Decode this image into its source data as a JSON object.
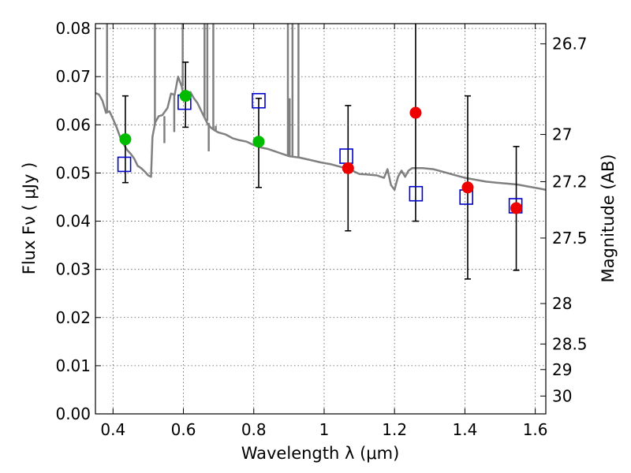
{
  "chart_data": {
    "type": "scatter",
    "xlabel": "Wavelength  λ (μm)",
    "ylabel": "Flux  Fν  ( μJy )",
    "y2label": "Magnitude (AB)",
    "xlim": [
      0.35,
      1.63
    ],
    "ylim": [
      0.0,
      0.081
    ],
    "x_ticks": [
      0.4,
      0.6,
      0.8,
      1.0,
      1.2,
      1.4,
      1.6
    ],
    "x_tick_labels": [
      "0.4",
      "0.6",
      "0.8",
      "1",
      "1.2",
      "1.4",
      "1.6"
    ],
    "y_ticks": [
      0.0,
      0.01,
      0.02,
      0.03,
      0.04,
      0.05,
      0.06,
      0.07,
      0.08
    ],
    "y_tick_labels": [
      "0.00",
      "0.01",
      "0.02",
      "0.03",
      "0.04",
      "0.05",
      "0.06",
      "0.07",
      "0.08"
    ],
    "mag_ticks": [
      {
        "flux": 0.0768,
        "label": "26.7"
      },
      {
        "flux": 0.058,
        "label": "27"
      },
      {
        "flux": 0.0482,
        "label": "27.2"
      },
      {
        "flux": 0.0365,
        "label": "27.5"
      },
      {
        "flux": 0.0229,
        "label": "28"
      },
      {
        "flux": 0.0145,
        "label": "28.5"
      },
      {
        "flux": 0.0092,
        "label": "29"
      },
      {
        "flux": 0.0037,
        "label": "30"
      }
    ],
    "grid": true,
    "colors": {
      "sed": "#808080",
      "green": "#00bb00",
      "red": "#ee0000",
      "model": "#0000cc",
      "error": "#000000"
    },
    "errorbars": [
      {
        "x": 0.435,
        "y": 0.057,
        "lo": 0.048,
        "hi": 0.066
      },
      {
        "x": 0.606,
        "y": 0.066,
        "lo": 0.0595,
        "hi": 0.073
      },
      {
        "x": 0.814,
        "y": 0.0565,
        "lo": 0.047,
        "hi": 0.0655
      },
      {
        "x": 1.068,
        "y": 0.051,
        "lo": 0.038,
        "hi": 0.064
      },
      {
        "x": 1.26,
        "y": 0.0625,
        "lo": 0.04,
        "hi": 0.0815
      },
      {
        "x": 1.408,
        "y": 0.047,
        "lo": 0.028,
        "hi": 0.066
      },
      {
        "x": 1.546,
        "y": 0.0427,
        "lo": 0.0298,
        "hi": 0.0555
      }
    ],
    "series": [
      {
        "name": "observed-green",
        "marker": "circle",
        "color": "#00bb00",
        "points": [
          [
            0.435,
            0.057
          ],
          [
            0.606,
            0.066
          ],
          [
            0.814,
            0.0565
          ]
        ]
      },
      {
        "name": "observed-red",
        "marker": "circle",
        "color": "#ee0000",
        "points": [
          [
            1.068,
            0.051
          ],
          [
            1.26,
            0.0625
          ],
          [
            1.408,
            0.047
          ],
          [
            1.546,
            0.0427
          ]
        ]
      },
      {
        "name": "model-photometry",
        "marker": "open-square",
        "color": "#0000cc",
        "points": [
          [
            0.432,
            0.0518
          ],
          [
            0.603,
            0.0647
          ],
          [
            0.814,
            0.065
          ],
          [
            1.063,
            0.0535
          ],
          [
            1.261,
            0.0457
          ],
          [
            1.404,
            0.045
          ],
          [
            1.544,
            0.0432
          ]
        ]
      },
      {
        "name": "sed-model",
        "marker": "line",
        "color": "#808080",
        "points": [
          [
            0.35,
            0.0666
          ],
          [
            0.36,
            0.0663
          ],
          [
            0.37,
            0.065
          ],
          [
            0.38,
            0.0625
          ],
          [
            0.39,
            0.0628
          ],
          [
            0.4,
            0.0612
          ],
          [
            0.41,
            0.0595
          ],
          [
            0.42,
            0.0575
          ],
          [
            0.43,
            0.056
          ],
          [
            0.44,
            0.0548
          ],
          [
            0.45,
            0.054
          ],
          [
            0.46,
            0.053
          ],
          [
            0.47,
            0.0515
          ],
          [
            0.48,
            0.051
          ],
          [
            0.49,
            0.0503
          ],
          [
            0.5,
            0.0495
          ],
          [
            0.508,
            0.0492
          ],
          [
            0.512,
            0.0575
          ],
          [
            0.52,
            0.0605
          ],
          [
            0.53,
            0.0618
          ],
          [
            0.54,
            0.062
          ],
          [
            0.555,
            0.0635
          ],
          [
            0.565,
            0.0665
          ],
          [
            0.575,
            0.0662
          ],
          [
            0.585,
            0.07
          ],
          [
            0.595,
            0.068
          ],
          [
            0.6,
            0.0662
          ],
          [
            0.61,
            0.0665
          ],
          [
            0.62,
            0.0668
          ],
          [
            0.63,
            0.0655
          ],
          [
            0.64,
            0.0645
          ],
          [
            0.65,
            0.063
          ],
          [
            0.66,
            0.0615
          ],
          [
            0.67,
            0.06
          ],
          [
            0.68,
            0.0593
          ],
          [
            0.69,
            0.0588
          ],
          [
            0.7,
            0.0584
          ],
          [
            0.72,
            0.058
          ],
          [
            0.74,
            0.0572
          ],
          [
            0.76,
            0.0568
          ],
          [
            0.78,
            0.0565
          ],
          [
            0.8,
            0.0558
          ],
          [
            0.82,
            0.0553
          ],
          [
            0.84,
            0.055
          ],
          [
            0.86,
            0.0545
          ],
          [
            0.88,
            0.054
          ],
          [
            0.9,
            0.0535
          ],
          [
            0.93,
            0.0532
          ],
          [
            0.96,
            0.0527
          ],
          [
            0.99,
            0.0522
          ],
          [
            1.02,
            0.0518
          ],
          [
            1.05,
            0.0512
          ],
          [
            1.08,
            0.0505
          ],
          [
            1.1,
            0.0498
          ],
          [
            1.12,
            0.0497
          ],
          [
            1.15,
            0.0495
          ],
          [
            1.17,
            0.049
          ],
          [
            1.18,
            0.0508
          ],
          [
            1.19,
            0.0475
          ],
          [
            1.2,
            0.0465
          ],
          [
            1.21,
            0.0492
          ],
          [
            1.22,
            0.0505
          ],
          [
            1.23,
            0.0492
          ],
          [
            1.24,
            0.0505
          ],
          [
            1.25,
            0.051
          ],
          [
            1.28,
            0.051
          ],
          [
            1.31,
            0.0508
          ],
          [
            1.34,
            0.0502
          ],
          [
            1.37,
            0.0496
          ],
          [
            1.4,
            0.049
          ],
          [
            1.43,
            0.0486
          ],
          [
            1.46,
            0.0482
          ],
          [
            1.49,
            0.048
          ],
          [
            1.52,
            0.0478
          ],
          [
            1.55,
            0.0476
          ],
          [
            1.58,
            0.0472
          ],
          [
            1.61,
            0.0468
          ],
          [
            1.63,
            0.0465
          ]
        ]
      }
    ],
    "spikes": [
      {
        "x": 0.383,
        "from": 0.0628,
        "to": 0.081
      },
      {
        "x": 0.519,
        "from": 0.06,
        "to": 0.081
      },
      {
        "x": 0.546,
        "from": 0.0618,
        "to": 0.0562
      },
      {
        "x": 0.574,
        "from": 0.0662,
        "to": 0.0585
      },
      {
        "x": 0.598,
        "from": 0.068,
        "to": 0.081
      },
      {
        "x": 0.66,
        "from": 0.0615,
        "to": 0.081
      },
      {
        "x": 0.668,
        "from": 0.0608,
        "to": 0.081
      },
      {
        "x": 0.672,
        "from": 0.0604,
        "to": 0.0545
      },
      {
        "x": 0.685,
        "from": 0.059,
        "to": 0.081
      },
      {
        "x": 0.692,
        "from": 0.0586,
        "to": 0.0598
      },
      {
        "x": 0.897,
        "from": 0.0536,
        "to": 0.081
      },
      {
        "x": 0.902,
        "from": 0.0535,
        "to": 0.0655
      },
      {
        "x": 0.91,
        "from": 0.0534,
        "to": 0.081
      },
      {
        "x": 0.915,
        "from": 0.0534,
        "to": 0.0535
      },
      {
        "x": 0.927,
        "from": 0.0532,
        "to": 0.081
      }
    ]
  }
}
